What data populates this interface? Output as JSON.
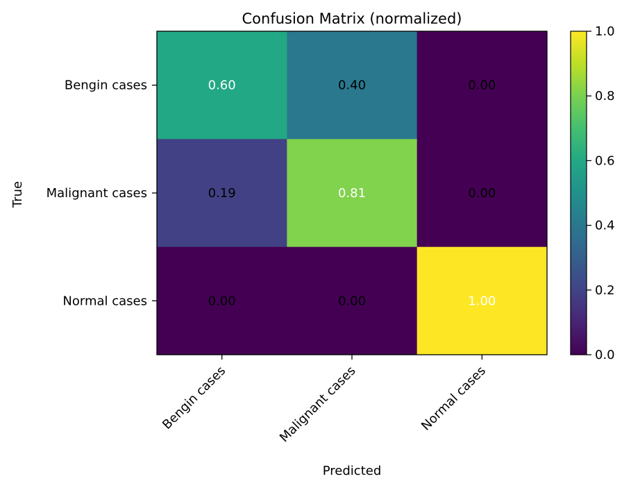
{
  "chart_data": {
    "type": "heatmap",
    "title": "Confusion Matrix (normalized)",
    "xlabel": "Predicted",
    "ylabel": "True",
    "x_categories": [
      "Bengin cases",
      "Malignant cases",
      "Normal cases"
    ],
    "y_categories": [
      "Bengin cases",
      "Malignant cases",
      "Normal cases"
    ],
    "values": [
      [
        0.6,
        0.4,
        0.0
      ],
      [
        0.19,
        0.81,
        0.0
      ],
      [
        0.0,
        0.0,
        1.0
      ]
    ],
    "cell_labels": [
      [
        "0.60",
        "0.40",
        "0.00"
      ],
      [
        "0.19",
        "0.81",
        "0.00"
      ],
      [
        "0.00",
        "0.00",
        "1.00"
      ]
    ],
    "colorbar": {
      "range": [
        0.0,
        1.0
      ],
      "ticks": [
        0.0,
        0.2,
        0.4,
        0.6,
        0.8,
        1.0
      ],
      "tick_labels": [
        "0.0",
        "0.2",
        "0.4",
        "0.6",
        "0.8",
        "1.0"
      ]
    },
    "colormap": "viridis",
    "label_colors": {
      "dark_cell": "#ffffff",
      "light_cell": "#000000"
    },
    "grid": false
  }
}
